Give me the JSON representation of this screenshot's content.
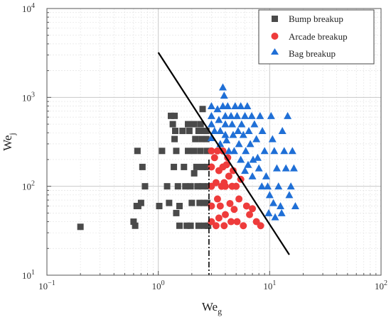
{
  "chart_data": {
    "type": "scatter",
    "xscale": "log",
    "yscale": "log",
    "xlim": [
      0.1,
      100
    ],
    "ylim": [
      10,
      10000
    ],
    "grid": true,
    "minor_grid": true,
    "legend_position": "top-right",
    "xlabel": {
      "base": "We",
      "sub": "g"
    },
    "ylabel": {
      "base": "We",
      "sub": "j"
    },
    "x_ticks": [
      {
        "value": 0.1,
        "base": "10",
        "exp": "−1"
      },
      {
        "value": 1,
        "base": "10",
        "exp": "0"
      },
      {
        "value": 10,
        "base": "10",
        "exp": "1"
      },
      {
        "value": 100,
        "base": "10",
        "exp": "2"
      }
    ],
    "y_ticks": [
      {
        "value": 10,
        "base": "10",
        "exp": "1"
      },
      {
        "value": 100,
        "base": "10",
        "exp": "2"
      },
      {
        "value": 1000,
        "base": "10",
        "exp": "3"
      },
      {
        "value": 10000,
        "base": "10",
        "exp": "4"
      }
    ],
    "series": [
      {
        "name": "Bump breakup",
        "marker": "square",
        "color": "#4a4a4a",
        "points": [
          [
            0.2,
            35
          ],
          [
            0.6,
            40
          ],
          [
            0.62,
            36
          ],
          [
            0.64,
            60
          ],
          [
            0.66,
            60
          ],
          [
            0.65,
            250
          ],
          [
            0.7,
            65
          ],
          [
            0.72,
            165
          ],
          [
            0.76,
            100
          ],
          [
            1.02,
            60
          ],
          [
            1.08,
            250
          ],
          [
            1.2,
            100
          ],
          [
            1.25,
            65
          ],
          [
            1.3,
            620
          ],
          [
            1.35,
            500
          ],
          [
            1.4,
            620
          ],
          [
            1.42,
            420
          ],
          [
            1.4,
            340
          ],
          [
            1.45,
            250
          ],
          [
            1.38,
            165
          ],
          [
            1.5,
            100
          ],
          [
            1.55,
            60
          ],
          [
            1.45,
            50
          ],
          [
            1.55,
            36
          ],
          [
            1.65,
            420
          ],
          [
            1.7,
            165
          ],
          [
            1.75,
            100
          ],
          [
            1.8,
            36
          ],
          [
            1.85,
            500
          ],
          [
            1.9,
            420
          ],
          [
            1.85,
            250
          ],
          [
            1.95,
            100
          ],
          [
            2.0,
            65
          ],
          [
            1.95,
            36
          ],
          [
            2.1,
            500
          ],
          [
            2.15,
            340
          ],
          [
            2.1,
            250
          ],
          [
            2.2,
            165
          ],
          [
            2.1,
            140
          ],
          [
            2.25,
            100
          ],
          [
            2.35,
            65
          ],
          [
            2.3,
            36
          ],
          [
            2.4,
            500
          ],
          [
            2.45,
            340
          ],
          [
            2.4,
            250
          ],
          [
            2.5,
            165
          ],
          [
            2.5,
            100
          ],
          [
            2.55,
            65
          ],
          [
            2.6,
            36
          ],
          [
            2.7,
            420
          ],
          [
            2.7,
            340
          ],
          [
            2.75,
            250
          ],
          [
            2.75,
            165
          ],
          [
            2.8,
            100
          ],
          [
            2.75,
            65
          ],
          [
            2.8,
            36
          ],
          [
            2.5,
            740
          ],
          [
            2.6,
            420
          ],
          [
            2.3,
            420
          ]
        ]
      },
      {
        "name": "Arcade breakup",
        "marker": "circle",
        "color": "#ee3b3b",
        "points": [
          [
            3.0,
            250
          ],
          [
            3.0,
            165
          ],
          [
            3.0,
            100
          ],
          [
            3.0,
            60
          ],
          [
            3.0,
            40
          ],
          [
            3.2,
            210
          ],
          [
            3.3,
            110
          ],
          [
            3.3,
            36
          ],
          [
            3.4,
            250
          ],
          [
            3.5,
            150
          ],
          [
            3.4,
            72
          ],
          [
            3.6,
            60
          ],
          [
            3.5,
            44
          ],
          [
            3.7,
            100
          ],
          [
            3.8,
            250
          ],
          [
            3.8,
            165
          ],
          [
            3.9,
            110
          ],
          [
            3.9,
            36
          ],
          [
            4.0,
            100
          ],
          [
            4.0,
            48
          ],
          [
            4.2,
            210
          ],
          [
            4.3,
            130
          ],
          [
            4.4,
            64
          ],
          [
            4.5,
            40
          ],
          [
            4.6,
            100
          ],
          [
            4.8,
            55
          ],
          [
            5.0,
            100
          ],
          [
            5.1,
            40
          ],
          [
            5.3,
            72
          ],
          [
            5.5,
            120
          ],
          [
            5.8,
            36
          ],
          [
            6.2,
            60
          ],
          [
            6.6,
            48
          ],
          [
            7.0,
            56
          ],
          [
            7.6,
            40
          ],
          [
            8.3,
            36
          ],
          [
            4.1,
            175
          ],
          [
            4.7,
            150
          ]
        ]
      },
      {
        "name": "Bag breakup",
        "marker": "triangle",
        "color": "#1f6fd6",
        "points": [
          [
            3.0,
            800
          ],
          [
            3.0,
            620
          ],
          [
            3.0,
            500
          ],
          [
            3.0,
            350
          ],
          [
            3.2,
            420
          ],
          [
            3.4,
            740
          ],
          [
            3.5,
            560
          ],
          [
            3.6,
            420
          ],
          [
            3.6,
            300
          ],
          [
            3.8,
            1300
          ],
          [
            3.9,
            1050
          ],
          [
            3.8,
            800
          ],
          [
            4.0,
            620
          ],
          [
            4.0,
            500
          ],
          [
            4.0,
            380
          ],
          [
            4.1,
            330
          ],
          [
            4.3,
            250
          ],
          [
            4.2,
            800
          ],
          [
            4.5,
            620
          ],
          [
            4.6,
            500
          ],
          [
            4.7,
            380
          ],
          [
            4.9,
            800
          ],
          [
            4.8,
            250
          ],
          [
            5.1,
            620
          ],
          [
            5.2,
            420
          ],
          [
            5.3,
            300
          ],
          [
            5.5,
            800
          ],
          [
            5.6,
            500
          ],
          [
            5.8,
            380
          ],
          [
            6.0,
            620
          ],
          [
            6.1,
            250
          ],
          [
            6.3,
            800
          ],
          [
            6.5,
            420
          ],
          [
            6.7,
            300
          ],
          [
            6.9,
            620
          ],
          [
            7.1,
            200
          ],
          [
            7.3,
            500
          ],
          [
            7.6,
            340
          ],
          [
            8.0,
            160
          ],
          [
            8.2,
            620
          ],
          [
            8.6,
            420
          ],
          [
            9.0,
            250
          ],
          [
            9.3,
            130
          ],
          [
            9.6,
            100
          ],
          [
            10.0,
            80
          ],
          [
            10.3,
            620
          ],
          [
            10.6,
            340
          ],
          [
            11.0,
            250
          ],
          [
            11.6,
            160
          ],
          [
            12.0,
            100
          ],
          [
            12.5,
            60
          ],
          [
            13.0,
            420
          ],
          [
            13.5,
            250
          ],
          [
            14.0,
            160
          ],
          [
            14.5,
            620
          ],
          [
            15.0,
            80
          ],
          [
            15.5,
            100
          ],
          [
            16.0,
            250
          ],
          [
            16.5,
            160
          ],
          [
            17.0,
            60
          ],
          [
            6.0,
            150
          ],
          [
            7.0,
            130
          ],
          [
            8.5,
            100
          ],
          [
            10.8,
            65
          ],
          [
            12.8,
            50
          ],
          [
            9.8,
            50
          ],
          [
            11.2,
            45
          ],
          [
            5.5,
            200
          ],
          [
            6.4,
            175
          ],
          [
            7.8,
            210
          ]
        ]
      }
    ],
    "lines": [
      {
        "style": "solid",
        "color": "#000000",
        "points": [
          [
            1.0,
            3200
          ],
          [
            15.0,
            17
          ]
        ]
      },
      {
        "style": "dashdot",
        "color": "#000000",
        "points": [
          [
            2.85,
            200
          ],
          [
            2.85,
            10
          ]
        ]
      }
    ]
  }
}
